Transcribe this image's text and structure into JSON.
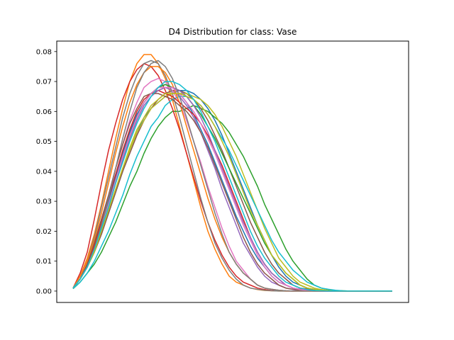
{
  "chart_data": {
    "type": "line",
    "title": "D4 Distribution for class: Vase",
    "xlabel": "",
    "ylabel": "",
    "ylim": [
      -0.0038,
      0.0835
    ],
    "xlim": [
      -2.3,
      47.3
    ],
    "x_ticks_visible": false,
    "y_ticks": [
      0.0,
      0.01,
      0.02,
      0.03,
      0.04,
      0.05,
      0.06,
      0.07,
      0.08
    ],
    "y_tick_labels": [
      "0.00",
      "0.01",
      "0.02",
      "0.03",
      "0.04",
      "0.05",
      "0.06",
      "0.07",
      "0.08"
    ],
    "grid": false,
    "legend": "none",
    "x": [
      0,
      1,
      2,
      3,
      4,
      5,
      6,
      7,
      8,
      9,
      10,
      11,
      12,
      13,
      14,
      15,
      16,
      17,
      18,
      19,
      20,
      21,
      22,
      23,
      24,
      25,
      26,
      27,
      28,
      29,
      30,
      31,
      32,
      33,
      34,
      35,
      36,
      37,
      38,
      39,
      40,
      41,
      42,
      43,
      44,
      45
    ],
    "series": [
      {
        "color": "#1f77b4",
        "values": [
          0.001,
          0.004,
          0.008,
          0.013,
          0.019,
          0.026,
          0.033,
          0.04,
          0.047,
          0.053,
          0.058,
          0.061,
          0.063,
          0.065,
          0.066,
          0.067,
          0.067,
          0.066,
          0.064,
          0.061,
          0.057,
          0.052,
          0.046,
          0.04,
          0.034,
          0.028,
          0.022,
          0.017,
          0.012,
          0.008,
          0.005,
          0.003,
          0.002,
          0.001,
          0.0005,
          0.0002,
          0.0001,
          0.0001,
          0.0,
          0.0,
          0.0,
          0.0,
          0.0,
          0.0,
          0.0,
          0.0
        ]
      },
      {
        "color": "#ff7f0e",
        "values": [
          0.001,
          0.005,
          0.011,
          0.019,
          0.029,
          0.04,
          0.051,
          0.061,
          0.07,
          0.076,
          0.079,
          0.079,
          0.076,
          0.071,
          0.064,
          0.055,
          0.046,
          0.037,
          0.028,
          0.02,
          0.014,
          0.009,
          0.005,
          0.003,
          0.002,
          0.001,
          0.0005,
          0.0002,
          0.0001,
          0.0,
          0.0,
          0.0,
          0.0,
          0.0,
          0.0,
          0.0,
          0.0,
          0.0,
          0.0,
          0.0,
          0.0,
          0.0,
          0.0,
          0.0,
          0.0,
          0.0
        ]
      },
      {
        "color": "#2ca02c",
        "values": [
          0.0008,
          0.003,
          0.006,
          0.009,
          0.013,
          0.018,
          0.023,
          0.029,
          0.035,
          0.04,
          0.046,
          0.051,
          0.055,
          0.058,
          0.06,
          0.06,
          0.061,
          0.062,
          0.061,
          0.06,
          0.058,
          0.056,
          0.053,
          0.049,
          0.045,
          0.04,
          0.035,
          0.029,
          0.024,
          0.019,
          0.014,
          0.01,
          0.007,
          0.004,
          0.002,
          0.001,
          0.0005,
          0.0002,
          0.0001,
          0.0,
          0.0,
          0.0,
          0.0,
          0.0,
          0.0,
          0.0
        ]
      },
      {
        "color": "#d62728",
        "values": [
          0.001,
          0.006,
          0.013,
          0.024,
          0.036,
          0.047,
          0.056,
          0.064,
          0.07,
          0.074,
          0.076,
          0.075,
          0.072,
          0.067,
          0.061,
          0.054,
          0.046,
          0.038,
          0.03,
          0.023,
          0.017,
          0.012,
          0.008,
          0.005,
          0.003,
          0.002,
          0.001,
          0.0005,
          0.0002,
          0.0001,
          0.0,
          0.0,
          0.0,
          0.0,
          0.0,
          0.0,
          0.0,
          0.0,
          0.0,
          0.0,
          0.0,
          0.0,
          0.0,
          0.0,
          0.0,
          0.0
        ]
      },
      {
        "color": "#9467bd",
        "values": [
          0.001,
          0.004,
          0.009,
          0.015,
          0.022,
          0.03,
          0.038,
          0.046,
          0.053,
          0.059,
          0.063,
          0.066,
          0.067,
          0.068,
          0.067,
          0.065,
          0.062,
          0.058,
          0.053,
          0.047,
          0.041,
          0.034,
          0.028,
          0.022,
          0.016,
          0.012,
          0.008,
          0.005,
          0.003,
          0.002,
          0.001,
          0.0005,
          0.0002,
          0.0001,
          0.0,
          0.0,
          0.0,
          0.0,
          0.0,
          0.0,
          0.0,
          0.0,
          0.0,
          0.0,
          0.0,
          0.0
        ]
      },
      {
        "color": "#8c564b",
        "values": [
          0.001,
          0.004,
          0.008,
          0.013,
          0.019,
          0.026,
          0.033,
          0.04,
          0.046,
          0.052,
          0.057,
          0.061,
          0.064,
          0.066,
          0.067,
          0.067,
          0.066,
          0.064,
          0.061,
          0.057,
          0.052,
          0.047,
          0.041,
          0.035,
          0.029,
          0.023,
          0.018,
          0.013,
          0.009,
          0.006,
          0.004,
          0.002,
          0.001,
          0.0007,
          0.0003,
          0.0001,
          0.0,
          0.0,
          0.0,
          0.0,
          0.0,
          0.0,
          0.0,
          0.0,
          0.0,
          0.0
        ]
      },
      {
        "color": "#e377c2",
        "values": [
          0.001,
          0.004,
          0.009,
          0.016,
          0.024,
          0.032,
          0.041,
          0.049,
          0.057,
          0.063,
          0.068,
          0.07,
          0.071,
          0.07,
          0.067,
          0.063,
          0.057,
          0.05,
          0.043,
          0.035,
          0.028,
          0.021,
          0.015,
          0.01,
          0.007,
          0.004,
          0.002,
          0.001,
          0.0006,
          0.0003,
          0.0001,
          0.0,
          0.0,
          0.0,
          0.0,
          0.0,
          0.0,
          0.0,
          0.0,
          0.0,
          0.0,
          0.0,
          0.0,
          0.0,
          0.0,
          0.0
        ]
      },
      {
        "color": "#7f7f7f",
        "values": [
          0.001,
          0.005,
          0.01,
          0.018,
          0.028,
          0.038,
          0.048,
          0.058,
          0.066,
          0.072,
          0.076,
          0.077,
          0.076,
          0.072,
          0.066,
          0.058,
          0.049,
          0.04,
          0.031,
          0.023,
          0.016,
          0.011,
          0.007,
          0.004,
          0.002,
          0.001,
          0.0006,
          0.0003,
          0.0001,
          0.0,
          0.0,
          0.0,
          0.0,
          0.0,
          0.0,
          0.0,
          0.0,
          0.0,
          0.0,
          0.0,
          0.0,
          0.0,
          0.0,
          0.0,
          0.0,
          0.0
        ]
      },
      {
        "color": "#bcbd22",
        "values": [
          0.001,
          0.004,
          0.008,
          0.014,
          0.02,
          0.027,
          0.034,
          0.041,
          0.047,
          0.053,
          0.057,
          0.061,
          0.063,
          0.065,
          0.066,
          0.066,
          0.066,
          0.065,
          0.064,
          0.062,
          0.059,
          0.055,
          0.05,
          0.045,
          0.039,
          0.033,
          0.027,
          0.021,
          0.016,
          0.011,
          0.008,
          0.005,
          0.003,
          0.002,
          0.001,
          0.0005,
          0.0002,
          0.0001,
          0.0,
          0.0,
          0.0,
          0.0,
          0.0,
          0.0,
          0.0,
          0.0
        ]
      },
      {
        "color": "#17becf",
        "values": [
          0.0008,
          0.003,
          0.006,
          0.01,
          0.015,
          0.02,
          0.026,
          0.032,
          0.039,
          0.045,
          0.05,
          0.055,
          0.058,
          0.062,
          0.064,
          0.065,
          0.065,
          0.064,
          0.062,
          0.059,
          0.055,
          0.051,
          0.047,
          0.042,
          0.037,
          0.032,
          0.027,
          0.022,
          0.017,
          0.013,
          0.01,
          0.007,
          0.005,
          0.003,
          0.002,
          0.001,
          0.0006,
          0.0003,
          0.0001,
          0.0,
          0.0,
          0.0,
          0.0,
          0.0,
          0.0,
          0.0
        ]
      },
      {
        "color": "#1f77b4",
        "values": [
          0.001,
          0.004,
          0.009,
          0.015,
          0.022,
          0.03,
          0.038,
          0.046,
          0.053,
          0.059,
          0.063,
          0.066,
          0.068,
          0.069,
          0.068,
          0.066,
          0.063,
          0.059,
          0.054,
          0.049,
          0.043,
          0.037,
          0.031,
          0.025,
          0.02,
          0.015,
          0.011,
          0.008,
          0.005,
          0.003,
          0.002,
          0.001,
          0.0005,
          0.0002,
          0.0001,
          0.0,
          0.0,
          0.0,
          0.0,
          0.0,
          0.0,
          0.0,
          0.0,
          0.0,
          0.0,
          0.0
        ]
      },
      {
        "color": "#ff7f0e",
        "values": [
          0.001,
          0.005,
          0.01,
          0.017,
          0.026,
          0.036,
          0.046,
          0.055,
          0.063,
          0.069,
          0.073,
          0.075,
          0.075,
          0.073,
          0.069,
          0.063,
          0.055,
          0.047,
          0.039,
          0.031,
          0.024,
          0.018,
          0.013,
          0.009,
          0.006,
          0.004,
          0.002,
          0.001,
          0.0006,
          0.0003,
          0.0001,
          0.0,
          0.0,
          0.0,
          0.0,
          0.0,
          0.0,
          0.0,
          0.0,
          0.0,
          0.0,
          0.0,
          0.0,
          0.0,
          0.0,
          0.0
        ]
      },
      {
        "color": "#2ca02c",
        "values": [
          0.001,
          0.004,
          0.008,
          0.014,
          0.021,
          0.029,
          0.037,
          0.045,
          0.052,
          0.058,
          0.063,
          0.066,
          0.068,
          0.069,
          0.068,
          0.067,
          0.065,
          0.062,
          0.059,
          0.055,
          0.051,
          0.046,
          0.041,
          0.036,
          0.031,
          0.026,
          0.021,
          0.016,
          0.012,
          0.009,
          0.006,
          0.004,
          0.002,
          0.001,
          0.0006,
          0.0003,
          0.0001,
          0.0,
          0.0,
          0.0,
          0.0,
          0.0,
          0.0,
          0.0,
          0.0,
          0.0
        ]
      },
      {
        "color": "#d62728",
        "values": [
          0.001,
          0.004,
          0.009,
          0.015,
          0.023,
          0.031,
          0.039,
          0.047,
          0.054,
          0.06,
          0.064,
          0.066,
          0.067,
          0.066,
          0.065,
          0.063,
          0.061,
          0.059,
          0.056,
          0.052,
          0.047,
          0.042,
          0.036,
          0.03,
          0.024,
          0.018,
          0.013,
          0.009,
          0.006,
          0.004,
          0.002,
          0.001,
          0.0006,
          0.0003,
          0.0001,
          0.0,
          0.0,
          0.0,
          0.0,
          0.0,
          0.0,
          0.0,
          0.0,
          0.0,
          0.0,
          0.0
        ]
      },
      {
        "color": "#9467bd",
        "values": [
          0.001,
          0.004,
          0.008,
          0.014,
          0.021,
          0.028,
          0.036,
          0.044,
          0.051,
          0.057,
          0.062,
          0.065,
          0.067,
          0.068,
          0.068,
          0.067,
          0.065,
          0.062,
          0.058,
          0.053,
          0.047,
          0.041,
          0.035,
          0.029,
          0.023,
          0.018,
          0.013,
          0.009,
          0.006,
          0.004,
          0.002,
          0.001,
          0.0006,
          0.0003,
          0.0001,
          0.0,
          0.0,
          0.0,
          0.0,
          0.0,
          0.0,
          0.0,
          0.0,
          0.0,
          0.0,
          0.0
        ]
      },
      {
        "color": "#8c564b",
        "values": [
          0.001,
          0.004,
          0.009,
          0.016,
          0.024,
          0.032,
          0.041,
          0.049,
          0.056,
          0.061,
          0.065,
          0.066,
          0.066,
          0.065,
          0.064,
          0.062,
          0.06,
          0.057,
          0.053,
          0.048,
          0.042,
          0.036,
          0.03,
          0.024,
          0.018,
          0.013,
          0.009,
          0.006,
          0.004,
          0.002,
          0.001,
          0.0006,
          0.0003,
          0.0001,
          0.0,
          0.0,
          0.0,
          0.0,
          0.0,
          0.0,
          0.0,
          0.0,
          0.0,
          0.0,
          0.0,
          0.0
        ]
      },
      {
        "color": "#e377c2",
        "values": [
          0.001,
          0.004,
          0.008,
          0.014,
          0.021,
          0.029,
          0.037,
          0.045,
          0.052,
          0.058,
          0.063,
          0.066,
          0.068,
          0.068,
          0.068,
          0.066,
          0.063,
          0.06,
          0.056,
          0.051,
          0.046,
          0.04,
          0.034,
          0.028,
          0.022,
          0.017,
          0.012,
          0.008,
          0.005,
          0.003,
          0.002,
          0.001,
          0.0005,
          0.0002,
          0.0001,
          0.0,
          0.0,
          0.0,
          0.0,
          0.0,
          0.0,
          0.0,
          0.0,
          0.0,
          0.0,
          0.0
        ]
      },
      {
        "color": "#7f7f7f",
        "values": [
          0.001,
          0.004,
          0.008,
          0.014,
          0.022,
          0.031,
          0.041,
          0.051,
          0.06,
          0.068,
          0.073,
          0.076,
          0.077,
          0.075,
          0.071,
          0.065,
          0.058,
          0.05,
          0.042,
          0.034,
          0.026,
          0.019,
          0.013,
          0.009,
          0.006,
          0.004,
          0.002,
          0.001,
          0.0006,
          0.0003,
          0.0001,
          0.0,
          0.0,
          0.0,
          0.0,
          0.0,
          0.0,
          0.0,
          0.0,
          0.0,
          0.0,
          0.0,
          0.0,
          0.0,
          0.0,
          0.0
        ]
      },
      {
        "color": "#bcbd22",
        "values": [
          0.001,
          0.004,
          0.008,
          0.013,
          0.02,
          0.027,
          0.034,
          0.041,
          0.048,
          0.054,
          0.058,
          0.062,
          0.064,
          0.066,
          0.066,
          0.066,
          0.065,
          0.064,
          0.062,
          0.059,
          0.055,
          0.05,
          0.045,
          0.039,
          0.033,
          0.027,
          0.022,
          0.017,
          0.012,
          0.009,
          0.006,
          0.004,
          0.002,
          0.001,
          0.0006,
          0.0003,
          0.0001,
          0.0,
          0.0,
          0.0,
          0.0,
          0.0,
          0.0,
          0.0,
          0.0,
          0.0
        ]
      },
      {
        "color": "#17becf",
        "values": [
          0.001,
          0.004,
          0.008,
          0.014,
          0.021,
          0.028,
          0.036,
          0.043,
          0.05,
          0.056,
          0.061,
          0.065,
          0.068,
          0.07,
          0.07,
          0.069,
          0.067,
          0.064,
          0.06,
          0.055,
          0.05,
          0.044,
          0.038,
          0.032,
          0.026,
          0.02,
          0.015,
          0.011,
          0.008,
          0.005,
          0.003,
          0.002,
          0.001,
          0.0005,
          0.0002,
          0.0001,
          0.0,
          0.0,
          0.0,
          0.0,
          0.0,
          0.0,
          0.0,
          0.0,
          0.0,
          0.0
        ]
      }
    ]
  }
}
